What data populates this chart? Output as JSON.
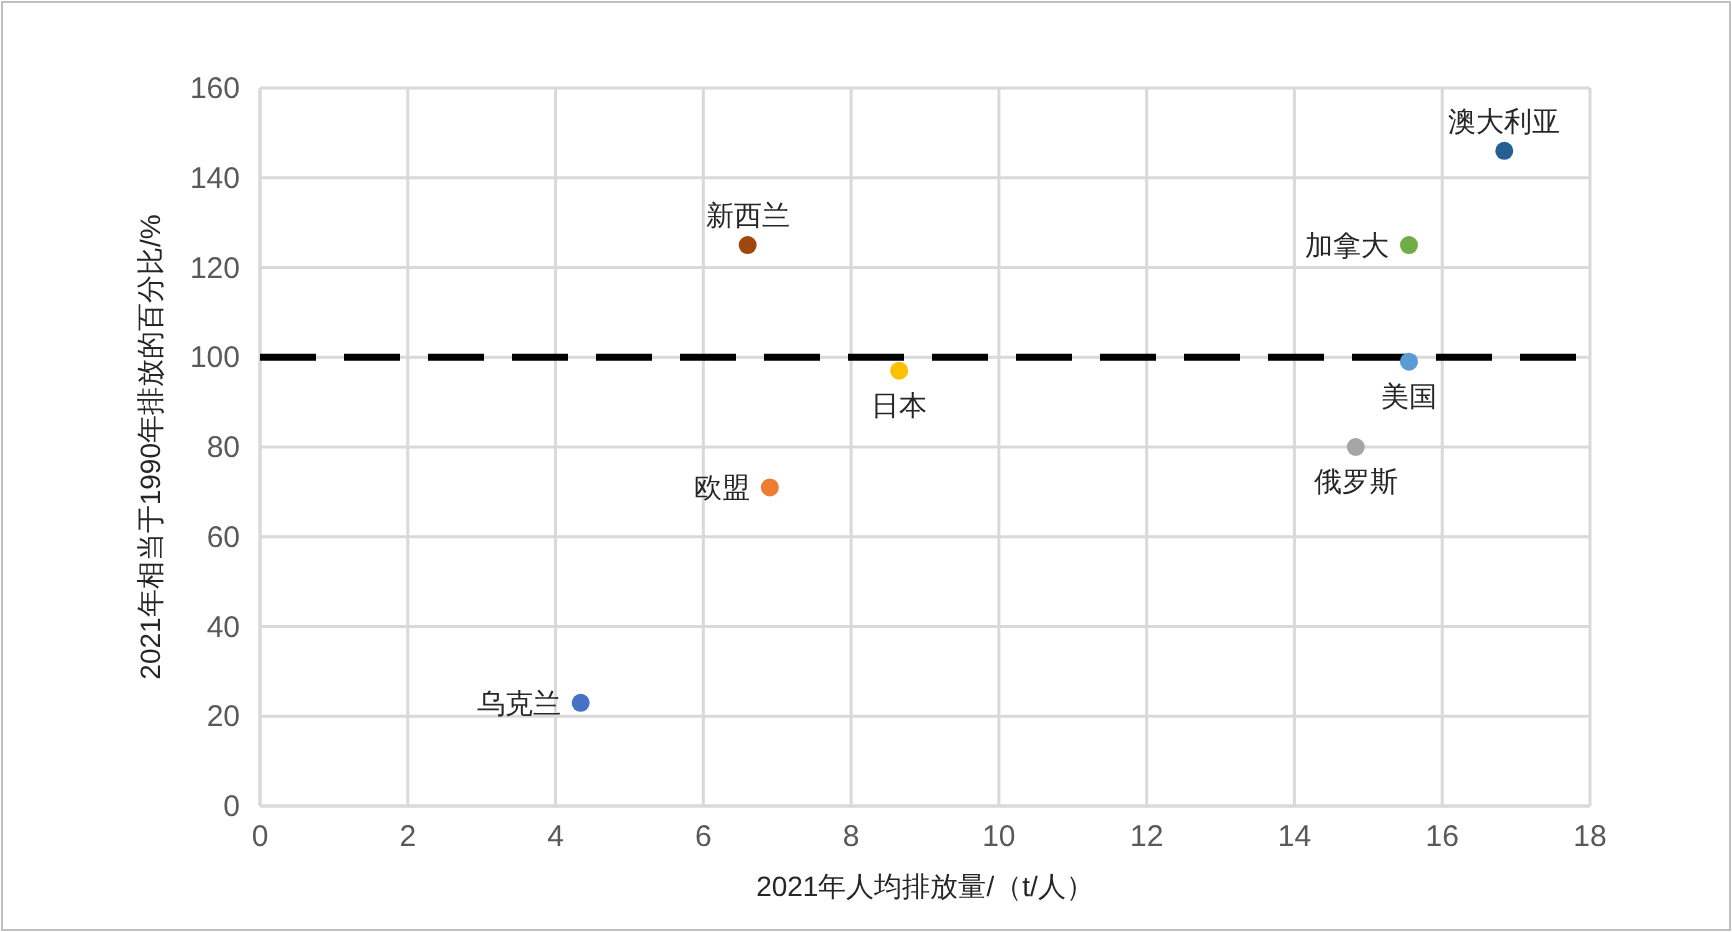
{
  "chart_data": {
    "type": "scatter",
    "xlabel": "2021年人均排放量/（t/人）",
    "ylabel": "2021年相当于1990年排放的百分比/%",
    "xlim": [
      0,
      18
    ],
    "xticks": [
      0,
      2,
      4,
      6,
      8,
      10,
      12,
      14,
      16,
      18
    ],
    "ylim": [
      0,
      160
    ],
    "yticks": [
      0,
      20,
      40,
      60,
      80,
      100,
      120,
      140,
      160
    ],
    "grid": true,
    "marker": "circle",
    "series": [
      {
        "name": "乌克兰",
        "color": "#4472c4",
        "x": [
          4.34
        ],
        "values": [
          23
        ]
      },
      {
        "name": "新西兰",
        "color": "#9e480e",
        "x": [
          6.6
        ],
        "values": [
          125
        ]
      },
      {
        "name": "欧盟",
        "color": "#ed7d31",
        "x": [
          6.9
        ],
        "values": [
          71
        ]
      },
      {
        "name": "日本",
        "color": "#ffc000",
        "x": [
          8.65
        ],
        "values": [
          97
        ]
      },
      {
        "name": "澳大利亚",
        "color": "#255e91",
        "x": [
          16.84
        ],
        "values": [
          146
        ]
      },
      {
        "name": "加拿大",
        "color": "#70ad47",
        "x": [
          15.55
        ],
        "values": [
          125
        ]
      },
      {
        "name": "美国",
        "color": "#5b9bd5",
        "x": [
          15.55
        ],
        "values": [
          99
        ]
      },
      {
        "name": "俄罗斯",
        "color": "#a5a5a5",
        "x": [
          14.83
        ],
        "values": [
          80
        ]
      }
    ],
    "ref_lines": [
      {
        "axis": "y",
        "value": 100,
        "color": "#000000",
        "line_style": "dashed"
      }
    ]
  }
}
